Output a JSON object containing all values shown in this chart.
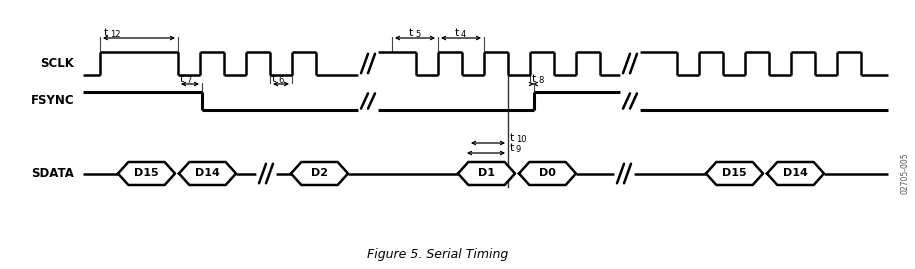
{
  "title": "Figure 5. Serial Timing",
  "bg_color": "#ffffff",
  "line_color": "#000000",
  "watermark": "02705-005",
  "sclk_label": "SCLK",
  "fsync_label": "FSYNC",
  "sdata_label": "SDATA",
  "fig_width": 9.15,
  "fig_height": 2.69,
  "dpi": 100
}
